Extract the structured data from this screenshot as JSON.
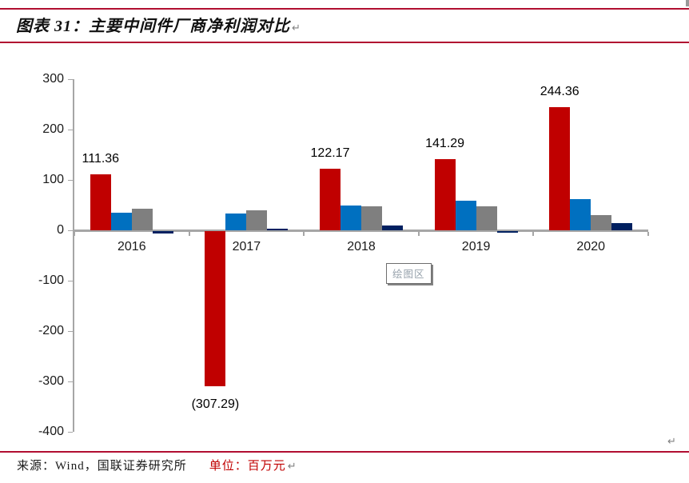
{
  "title": {
    "text": "图表 31：主要中间件厂商净利润对比",
    "paragraph_mark": "↵"
  },
  "tooltip": {
    "label": "绘图区"
  },
  "footer": {
    "source": "来源：Wind，国联证券研究所",
    "unit": "单位：百万元",
    "paragraph_mark": "↵"
  },
  "doc_paragraph_mark": "↵",
  "colors": {
    "rule_red": "#b10e31",
    "bar_red": "#c00000",
    "bar_blue": "#0070c0",
    "bar_gray": "#7f7f7f",
    "bar_navy": "#002060",
    "axis_gray": "#a6a6a6",
    "unit_text_red": "#c00000",
    "tooltip_text": "#97a2ac"
  },
  "chart_data": {
    "type": "bar",
    "title": "主要中间件厂商净利润对比",
    "unit_label": "百万元",
    "categories": [
      "2016",
      "2017",
      "2018",
      "2019",
      "2020"
    ],
    "series": [
      {
        "name": "series-red",
        "color": "#c00000",
        "values": [
          111.36,
          -307.29,
          122.17,
          141.29,
          244.36
        ],
        "labels": [
          "111.36",
          "(307.29)",
          "122.17",
          "141.29",
          "244.36"
        ]
      },
      {
        "name": "series-blue",
        "color": "#0070c0",
        "values": [
          35,
          34,
          50,
          58,
          62
        ]
      },
      {
        "name": "series-gray",
        "color": "#7f7f7f",
        "values": [
          43,
          40,
          47,
          48,
          30
        ]
      },
      {
        "name": "series-navy",
        "color": "#002060",
        "values": [
          -5,
          3,
          9,
          -2,
          15
        ]
      }
    ],
    "ylim": [
      -400,
      300
    ],
    "yticks": [
      300,
      200,
      100,
      0,
      -100,
      -200,
      -300,
      -400
    ],
    "grid": false,
    "legend": "none",
    "plot_area_tooltip": "绘图区"
  }
}
